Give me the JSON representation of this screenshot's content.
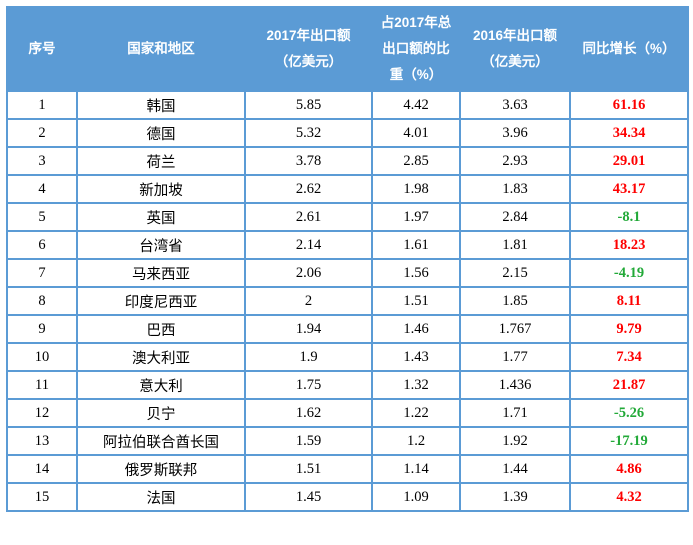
{
  "colors": {
    "header_bg": "#5b9bd5",
    "header_text": "#ffffff",
    "border": "#5b9bd5",
    "cell_text": "#000000",
    "positive_growth": "#fe0000",
    "negative_growth": "#22a938"
  },
  "table": {
    "headers": [
      "序号",
      "国家和地区",
      "2017年出口额\n（亿美元）",
      "占2017年总\n出口额的比\n重（%）",
      "2016年出口额\n（亿美元）",
      "同比增长（%）"
    ],
    "rows": [
      {
        "index": "1",
        "country": "韩国",
        "export_2017": "5.85",
        "share_2017": "4.42",
        "export_2016": "3.63",
        "yoy_growth": "61.16"
      },
      {
        "index": "2",
        "country": "德国",
        "export_2017": "5.32",
        "share_2017": "4.01",
        "export_2016": "3.96",
        "yoy_growth": "34.34"
      },
      {
        "index": "3",
        "country": "荷兰",
        "export_2017": "3.78",
        "share_2017": "2.85",
        "export_2016": "2.93",
        "yoy_growth": "29.01"
      },
      {
        "index": "4",
        "country": "新加坡",
        "export_2017": "2.62",
        "share_2017": "1.98",
        "export_2016": "1.83",
        "yoy_growth": "43.17"
      },
      {
        "index": "5",
        "country": "英国",
        "export_2017": "2.61",
        "share_2017": "1.97",
        "export_2016": "2.84",
        "yoy_growth": "-8.1"
      },
      {
        "index": "6",
        "country": "台湾省",
        "export_2017": "2.14",
        "share_2017": "1.61",
        "export_2016": "1.81",
        "yoy_growth": "18.23"
      },
      {
        "index": "7",
        "country": "马来西亚",
        "export_2017": "2.06",
        "share_2017": "1.56",
        "export_2016": "2.15",
        "yoy_growth": "-4.19"
      },
      {
        "index": "8",
        "country": "印度尼西亚",
        "export_2017": "2",
        "share_2017": "1.51",
        "export_2016": "1.85",
        "yoy_growth": "8.11"
      },
      {
        "index": "9",
        "country": "巴西",
        "export_2017": "1.94",
        "share_2017": "1.46",
        "export_2016": "1.767",
        "yoy_growth": "9.79"
      },
      {
        "index": "10",
        "country": "澳大利亚",
        "export_2017": "1.9",
        "share_2017": "1.43",
        "export_2016": "1.77",
        "yoy_growth": "7.34"
      },
      {
        "index": "11",
        "country": "意大利",
        "export_2017": "1.75",
        "share_2017": "1.32",
        "export_2016": "1.436",
        "yoy_growth": "21.87"
      },
      {
        "index": "12",
        "country": "贝宁",
        "export_2017": "1.62",
        "share_2017": "1.22",
        "export_2016": "1.71",
        "yoy_growth": "-5.26"
      },
      {
        "index": "13",
        "country": "阿拉伯联合酋长国",
        "export_2017": "1.59",
        "share_2017": "1.2",
        "export_2016": "1.92",
        "yoy_growth": "-17.19"
      },
      {
        "index": "14",
        "country": "俄罗斯联邦",
        "export_2017": "1.51",
        "share_2017": "1.14",
        "export_2016": "1.44",
        "yoy_growth": "4.86"
      },
      {
        "index": "15",
        "country": "法国",
        "export_2017": "1.45",
        "share_2017": "1.09",
        "export_2016": "1.39",
        "yoy_growth": "4.32"
      }
    ]
  }
}
